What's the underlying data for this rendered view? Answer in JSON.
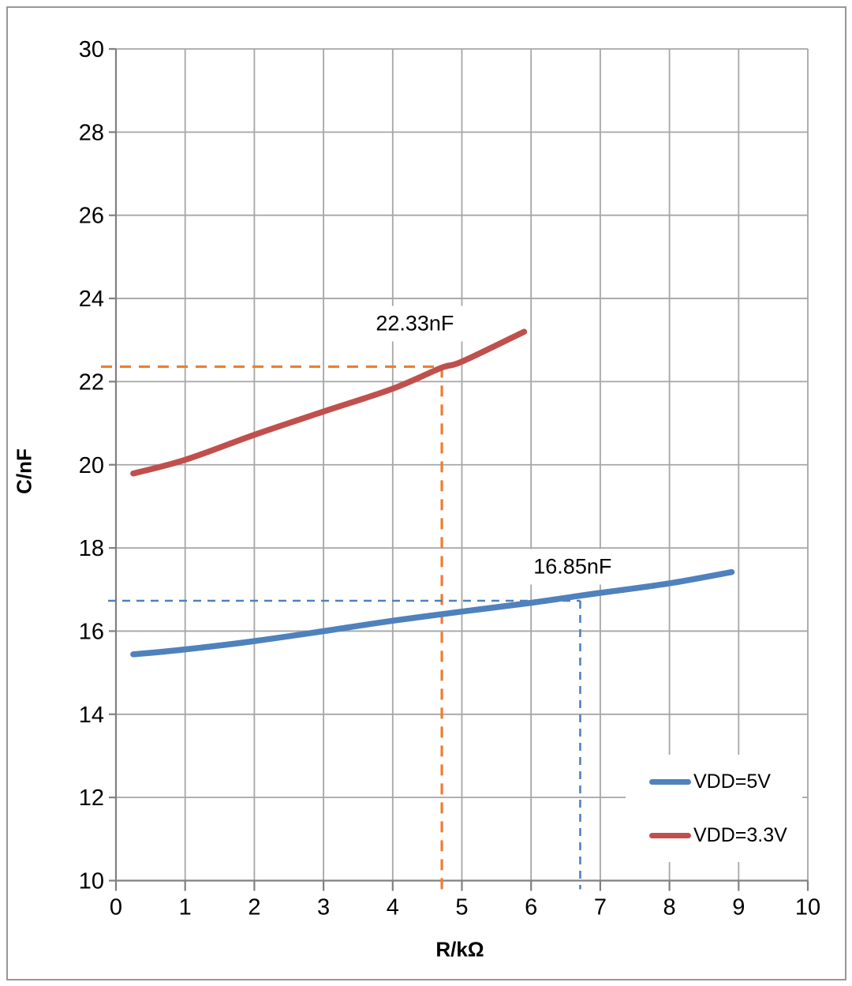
{
  "chart_data": {
    "type": "line",
    "title": "",
    "xlabel": "R/kΩ",
    "ylabel": "C/nF",
    "xlim": [
      0,
      10
    ],
    "ylim": [
      10,
      30
    ],
    "xticks": [
      0,
      1,
      2,
      3,
      4,
      5,
      6,
      7,
      8,
      9,
      10
    ],
    "yticks": [
      10,
      12,
      14,
      16,
      18,
      20,
      22,
      24,
      26,
      28,
      30
    ],
    "grid": "on",
    "legend": {
      "position": "inside-bottom-right",
      "entries": [
        "VDD=5V",
        "VDD=3.3V"
      ]
    },
    "series": [
      {
        "name": "VDD=5V",
        "color": "#4F81BD",
        "points": [
          [
            0.25,
            15.44
          ],
          [
            1,
            15.56
          ],
          [
            2,
            15.76
          ],
          [
            3,
            16.0
          ],
          [
            4,
            16.25
          ],
          [
            5,
            16.47
          ],
          [
            6,
            16.68
          ],
          [
            6.7,
            16.85
          ],
          [
            7,
            16.92
          ],
          [
            8,
            17.15
          ],
          [
            8.9,
            17.42
          ]
        ]
      },
      {
        "name": "VDD=3.3V",
        "color": "#C0504D",
        "points": [
          [
            0.25,
            19.79
          ],
          [
            1,
            20.12
          ],
          [
            2,
            20.72
          ],
          [
            3,
            21.28
          ],
          [
            4,
            21.83
          ],
          [
            4.7,
            22.33
          ],
          [
            5,
            22.48
          ],
          [
            5.9,
            23.2
          ]
        ]
      }
    ],
    "annotations": [
      {
        "text": "22.33nF",
        "x": 4.32,
        "y": 23.39
      },
      {
        "text": "16.85nF",
        "x": 6.6,
        "y": 17.55
      }
    ],
    "crosshairs": [
      {
        "x": 4.71,
        "y": 22.36,
        "color": "#ED7D31",
        "style": "dashed"
      },
      {
        "x": 6.71,
        "y": 16.73,
        "color": "#4F81BD",
        "style": "dashed"
      }
    ],
    "colors": {
      "gridline": "#A6A6A6",
      "axis": "#808080",
      "text": "#000000",
      "background": "#FFFFFF",
      "frame_border": "#979797"
    }
  }
}
